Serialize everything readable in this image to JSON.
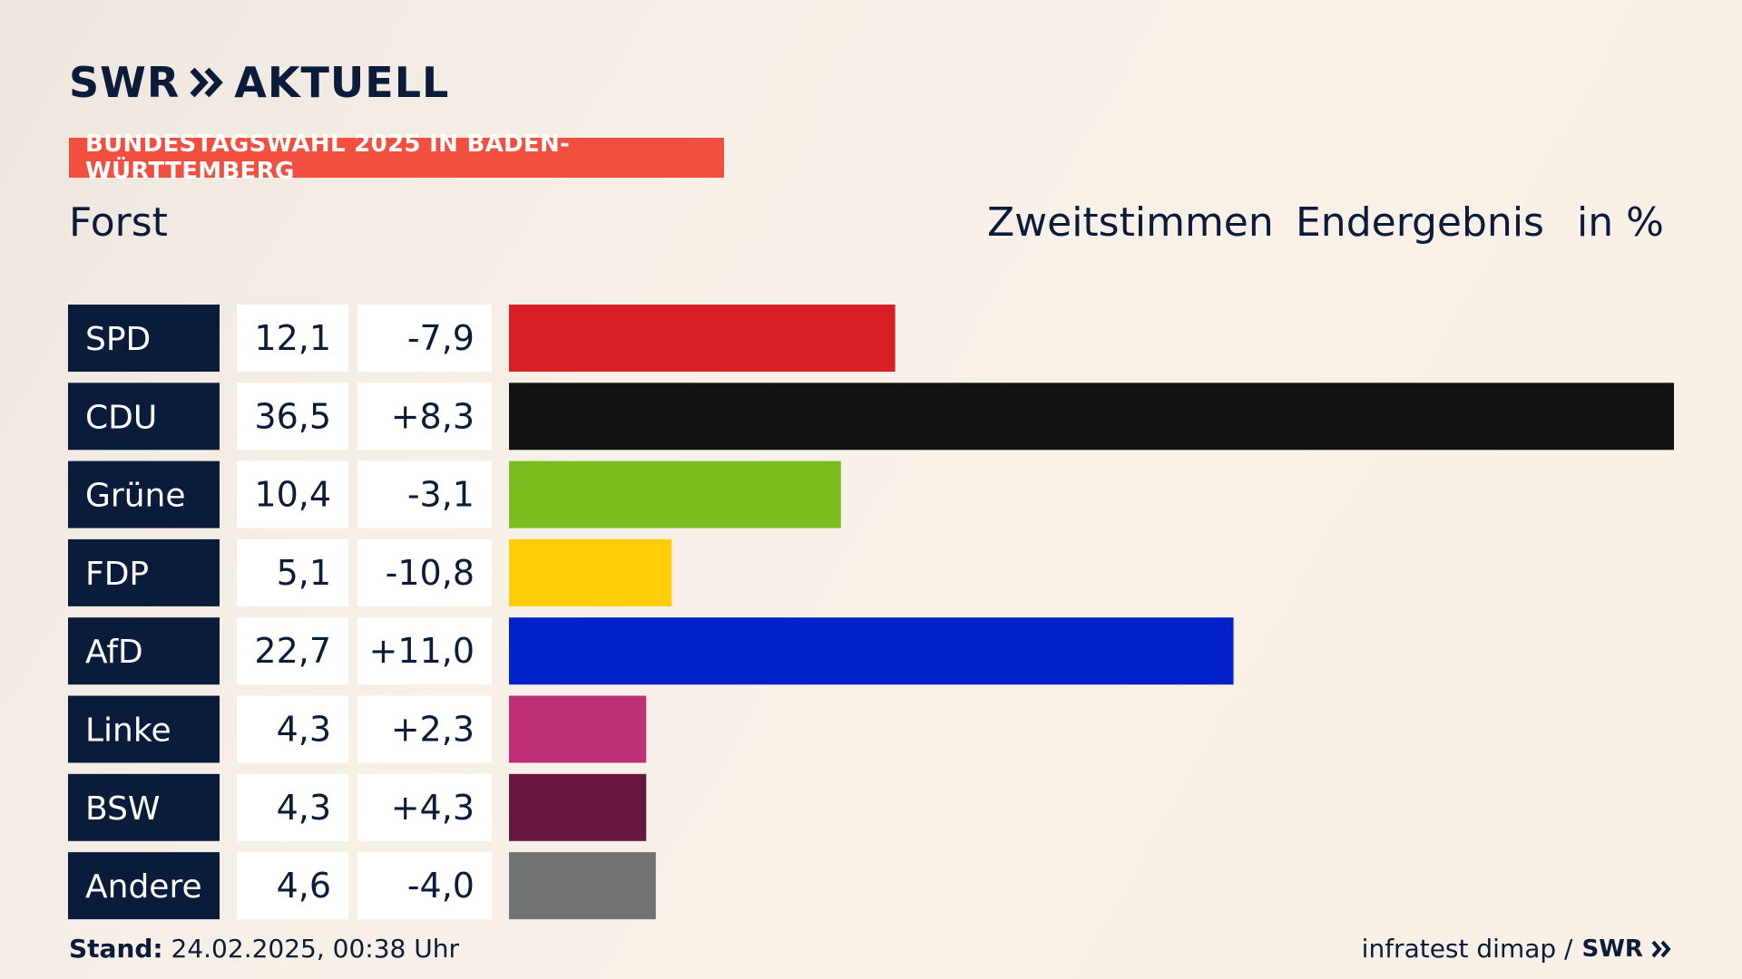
{
  "brand": {
    "logo_text": "SWR",
    "logo_subtext": "AKTUELL",
    "footer_logo": "SWR"
  },
  "badge": "BUNDESTAGSWAHL 2025 IN BADEN-WÜRTTEMBERG",
  "header": {
    "place": "Forst",
    "vote_type": "Zweitstimmen",
    "result_type": "Endergebnis",
    "unit": "in %"
  },
  "footer": {
    "stand_label": "Stand:",
    "stand_value": "24.02.2025, 00:38 Uhr",
    "source": "infratest dimap /"
  },
  "chart_data": {
    "type": "bar",
    "orientation": "horizontal",
    "categories": [
      "SPD",
      "CDU",
      "Grüne",
      "FDP",
      "AfD",
      "Linke",
      "BSW",
      "Andere"
    ],
    "values": [
      12.1,
      36.5,
      10.4,
      5.1,
      22.7,
      4.3,
      4.3,
      4.6
    ],
    "value_labels": [
      "12,1",
      "36,5",
      "10,4",
      "5,1",
      "22,7",
      "4,3",
      "4,3",
      "4,6"
    ],
    "change_labels": [
      "-7,9",
      "+8,3",
      "-3,1",
      "-10,8",
      "+11,0",
      "+2,3",
      "+4,3",
      "-4,0"
    ],
    "colors": [
      "#d81f26",
      "#121212",
      "#7abd1e",
      "#ffcc0a",
      "#0021c9",
      "#bd3075",
      "#67173e",
      "#717274"
    ],
    "xlim": [
      0,
      36.5
    ]
  }
}
